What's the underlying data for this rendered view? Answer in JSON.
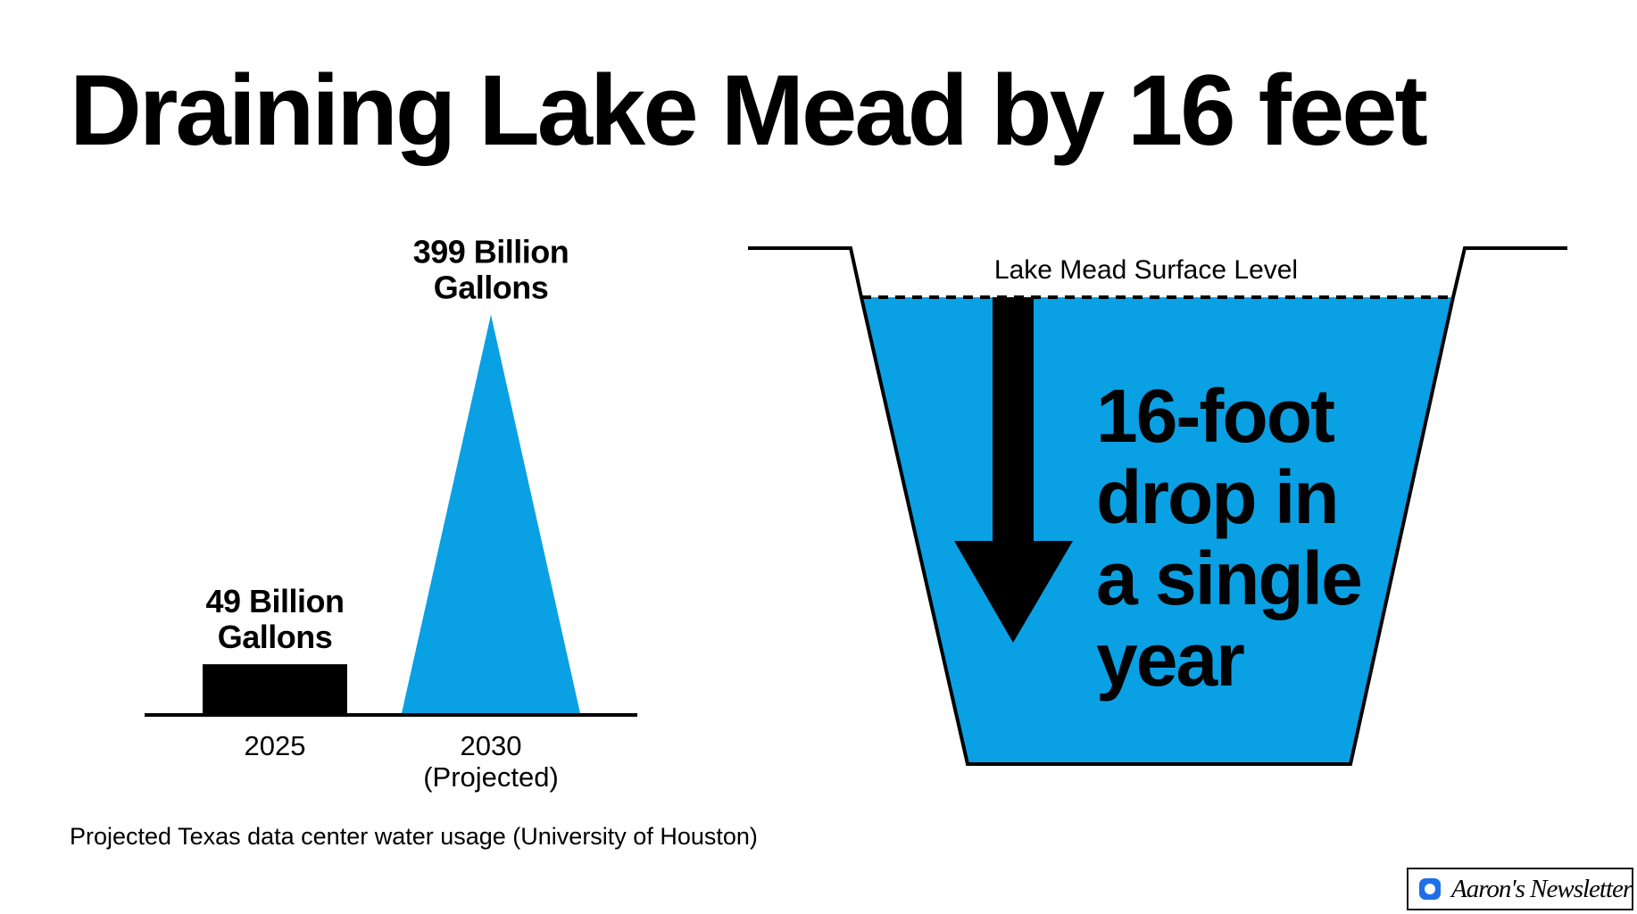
{
  "title": "Draining Lake Mead by 16 feet",
  "chart_data": {
    "type": "bar",
    "categories": [
      "2025",
      "2030\n(Projected)"
    ],
    "values": [
      49,
      399
    ],
    "value_labels": [
      "49 Billion\nGallons",
      "399 Billion\nGallons"
    ],
    "units": "Billion Gallons",
    "ylim": [
      0,
      420
    ],
    "grid": false,
    "colors": [
      "#000000",
      "#0aa0e4"
    ],
    "shapes": [
      "rectangle",
      "triangle"
    ]
  },
  "caption": "Projected Texas data center water usage (University of Houston)",
  "lake": {
    "surface_label": "Lake Mead Surface Level",
    "drop_text": [
      "16-foot",
      "drop in",
      "a single",
      "year"
    ],
    "water_color": "#0aa0e4",
    "arrow_icon": "down-arrow-icon"
  },
  "badge": {
    "text": "Aaron's Newsletter",
    "icon": "substack-logo-icon",
    "accent": "#1e6fe8"
  }
}
